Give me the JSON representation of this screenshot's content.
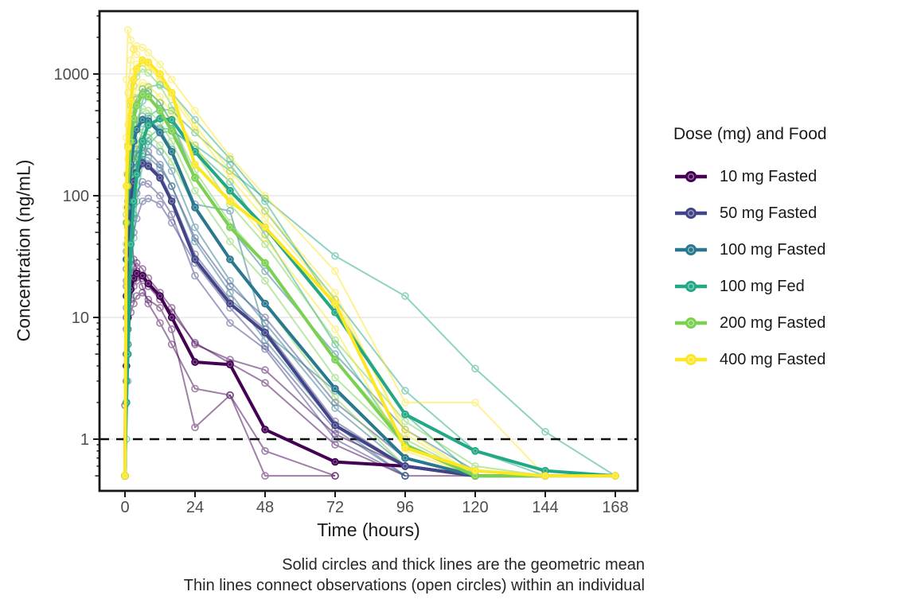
{
  "legend": {
    "title": "Dose (mg) and Food"
  },
  "caption": {
    "line1": "Solid circles and thick lines are the geometric mean",
    "line2": "Thin lines connect observations (open circles) within an individual"
  },
  "chart_data": {
    "type": "line",
    "title": "",
    "xlabel": "Time (hours)",
    "ylabel": "Concentration (ng/mL)",
    "x_ticks": [
      0,
      24,
      48,
      72,
      96,
      120,
      144,
      168
    ],
    "y_ticks": [
      1,
      10,
      100,
      1000
    ],
    "y_scale": "log10",
    "xlim": [
      -9,
      177
    ],
    "ylim": [
      0.38,
      3300
    ],
    "grid": "horizontal-major-only",
    "legend_position": "right",
    "reference_line": {
      "y": 1,
      "style": "dashed",
      "color": "#0e0e0e",
      "meaning": "lower limit of quantification"
    },
    "blq_plotted_at": 0.5,
    "sample_times_hours": [
      0,
      0.5,
      1,
      2,
      3,
      4,
      6,
      8,
      12,
      16,
      24,
      36,
      48,
      72,
      96,
      120,
      144,
      168
    ],
    "groups": [
      {
        "name": "10 mg Fasted",
        "color": "#440154",
        "mean": {
          "v": [
            0.5,
            4,
            10,
            17,
            21,
            23,
            22,
            19,
            15,
            10,
            4.3,
            4.1,
            1.2,
            0.65,
            0.6,
            0.5
          ]
        },
        "individuals": [
          {
            "v": [
              0.5,
              10,
              35,
              47,
              30,
              24,
              18,
              13,
              9,
              6,
              2.6,
              2.3,
              0.5,
              0.5
            ]
          },
          {
            "v": [
              1.9,
              3,
              8,
              14,
              18,
              20,
              21,
              18,
              14,
              11,
              6.2,
              4.2,
              2.9,
              0.9,
              0.5,
              0.5
            ]
          },
          {
            "v": [
              0.5,
              2,
              6,
              11,
              13,
              15,
              16,
              14,
              12,
              8,
              1.25,
              2.3,
              0.8,
              0.5
            ]
          },
          {
            "v": [
              0.5,
              5,
              14,
              22,
              26,
              28,
              25,
              21,
              16,
              12,
              6,
              4.5,
              3.7,
              1.1,
              0.6,
              0.5
            ]
          }
        ]
      },
      {
        "name": "50 mg Fasted",
        "color": "#414487",
        "mean": {
          "v": [
            0.5,
            15,
            40,
            90,
            130,
            155,
            185,
            175,
            140,
            90,
            30,
            13,
            7.5,
            1.3,
            0.6,
            0.5,
            0.5
          ]
        },
        "individuals": [
          {
            "v": [
              0.5,
              25,
              60,
              130,
              190,
              220,
              250,
              230,
              180,
              120,
              45,
              18,
              10,
              2,
              0.7,
              0.5,
              0.5
            ]
          },
          {
            "v": [
              0.5,
              8,
              20,
              55,
              85,
              105,
              130,
              125,
              100,
              70,
              22,
              9,
              5.5,
              1,
              0.5
            ]
          },
          {
            "v": [
              0.5,
              18,
              45,
              95,
              140,
              165,
              190,
              180,
              150,
              95,
              33,
              14,
              8,
              1.4,
              0.6,
              0.5
            ]
          },
          {
            "v": [
              0.5,
              5,
              12,
              30,
              50,
              65,
              90,
              95,
              85,
              60,
              28,
              12,
              5.8,
              1.2,
              0.5
            ]
          }
        ]
      },
      {
        "name": "100 mg Fasted",
        "color": "#2A788E",
        "mean": {
          "v": [
            0.5,
            30,
            80,
            180,
            280,
            350,
            420,
            410,
            330,
            230,
            80,
            30,
            13,
            2.6,
            0.7,
            0.5,
            0.5,
            0.5
          ]
        },
        "individuals": [
          {
            "v": [
              0.5,
              60,
              150,
              330,
              500,
              620,
              750,
              720,
              580,
              400,
              140,
              55,
              24,
              5,
              1.2,
              0.55,
              0.5
            ]
          },
          {
            "v": [
              0.5,
              20,
              55,
              120,
              190,
              240,
              290,
              280,
              230,
              160,
              55,
              20,
              9,
              1.8,
              0.6,
              0.5
            ]
          },
          {
            "v": [
              0.5,
              35,
              90,
              200,
              300,
              380,
              450,
              430,
              350,
              240,
              85,
              75,
              7.5,
              2.5,
              0.7,
              0.5
            ]
          },
          {
            "v": [
              0.5,
              12,
              30,
              80,
              130,
              170,
              210,
              205,
              170,
              120,
              42,
              16,
              6.5,
              1.3,
              0.5
            ]
          }
        ]
      },
      {
        "name": "100 mg Fed",
        "color": "#22A884",
        "mean": {
          "v": [
            0.5,
            2,
            5,
            40,
            90,
            150,
            280,
            380,
            430,
            420,
            230,
            110,
            55,
            11,
            1.6,
            0.8,
            0.55,
            0.5
          ]
        },
        "individuals": [
          {
            "v": [
              0.5,
              1,
              3,
              15,
              45,
              90,
              180,
              260,
              330,
              340,
              260,
              160,
              95,
              32,
              15,
              3.8,
              1.15,
              0.5
            ]
          },
          {
            "v": [
              0.5,
              3,
              8,
              50,
              120,
              200,
              350,
              450,
              520,
              500,
              330,
              180,
              75,
              14,
              2.5,
              0.8,
              0.5
            ]
          },
          {
            "v": [
              0.5,
              5,
              15,
              90,
              220,
              380,
              600,
              780,
              820,
              700,
              420,
              200,
              90,
              12,
              1.6,
              0.5
            ]
          },
          {
            "v": [
              0.5,
              2,
              6,
              30,
              70,
              120,
              220,
              300,
              360,
              350,
              240,
              130,
              48,
              6,
              0.9,
              0.5
            ]
          }
        ]
      },
      {
        "name": "200 mg Fasted",
        "color": "#7AD151",
        "mean": {
          "v": [
            0.5,
            60,
            120,
            280,
            430,
            550,
            680,
            650,
            500,
            340,
            140,
            55,
            28,
            4.5,
            0.9,
            0.5,
            0.5
          ]
        },
        "individuals": [
          {
            "v": [
              0.5,
              120,
              260,
              550,
              800,
              950,
              1100,
              1020,
              800,
              550,
              230,
              85,
              40,
              6.5,
              1.4,
              0.6,
              0.5
            ]
          },
          {
            "v": [
              0.5,
              40,
              90,
              200,
              320,
              420,
              520,
              500,
              400,
              280,
              110,
              42,
              20,
              3.2,
              0.9,
              0.5
            ]
          },
          {
            "v": [
              0.5,
              70,
              150,
              350,
              520,
              640,
              760,
              720,
              580,
              400,
              160,
              60,
              28,
              4.5,
              1,
              0.5
            ]
          },
          {
            "v": [
              0.5,
              25,
              55,
              130,
              200,
              260,
              330,
              320,
              260,
              190,
              80,
              30,
              13,
              2.2,
              0.6,
              0.5
            ]
          }
        ]
      },
      {
        "name": "400 mg Fasted",
        "color": "#FDE725",
        "mean": {
          "v": [
            0.5,
            120,
            250,
            600,
            900,
            1100,
            1300,
            1250,
            1000,
            700,
            180,
            90,
            55,
            13,
            0.85,
            0.55,
            0.5,
            0.5
          ]
        },
        "individuals": [
          {
            "v": [
              0.5,
              900,
              2300,
              1900,
              1600,
              1450,
              1300,
              1150,
              900,
              650,
              350,
              140,
              65,
              14,
              1.2,
              0.5
            ]
          },
          {
            "v": [
              0.5,
              300,
              700,
              1300,
              1600,
              1700,
              1650,
              1500,
              1200,
              900,
              500,
              210,
              100,
              24,
              2,
              2,
              0.5
            ]
          },
          {
            "v": [
              0.5,
              150,
              380,
              800,
              1050,
              1200,
              1250,
              1150,
              950,
              700,
              380,
              160,
              75,
              16,
              1.1,
              0.5
            ]
          },
          {
            "v": [
              0.5,
              80,
              200,
              450,
              650,
              780,
              850,
              800,
              650,
              480,
              260,
              100,
              45,
              8,
              0.8,
              0.5
            ]
          }
        ]
      }
    ]
  }
}
